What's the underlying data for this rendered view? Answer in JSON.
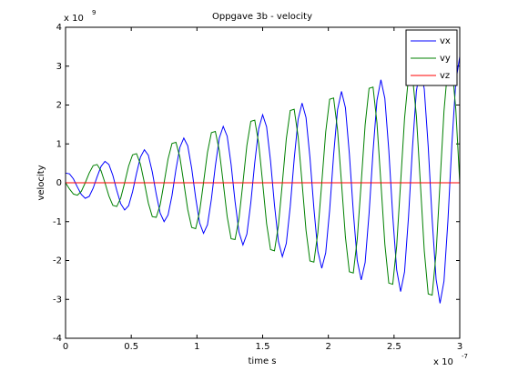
{
  "chart_data": {
    "type": "line",
    "title": "Oppgave 3b - velocity",
    "xlabel": "time s",
    "ylabel": "velocity",
    "x_exponent_base": "x 10",
    "x_exponent": "-7",
    "y_exponent_base": "x 10",
    "y_exponent": "9",
    "xlim": [
      0,
      3
    ],
    "ylim": [
      -4,
      4
    ],
    "xticks": [
      0,
      0.5,
      1,
      1.5,
      2,
      2.5,
      3
    ],
    "yticks": [
      -4,
      -3,
      -2,
      -1,
      0,
      1,
      2,
      3,
      4
    ],
    "legend_position": "upper right",
    "x": [
      0,
      0.03,
      0.06,
      0.09,
      0.12,
      0.15,
      0.18,
      0.21,
      0.24,
      0.27,
      0.3,
      0.33,
      0.36,
      0.39,
      0.42,
      0.45,
      0.48,
      0.51,
      0.54,
      0.57,
      0.6,
      0.63,
      0.66,
      0.69,
      0.72,
      0.75,
      0.78,
      0.81,
      0.84,
      0.87,
      0.9,
      0.93,
      0.96,
      0.99,
      1.02,
      1.05,
      1.08,
      1.11,
      1.14,
      1.17,
      1.2,
      1.23,
      1.26,
      1.29,
      1.32,
      1.35,
      1.38,
      1.41,
      1.44,
      1.47,
      1.5,
      1.53,
      1.56,
      1.59,
      1.62,
      1.65,
      1.68,
      1.71,
      1.74,
      1.77,
      1.8,
      1.83,
      1.86,
      1.89,
      1.92,
      1.95,
      1.98,
      2.01,
      2.04,
      2.07,
      2.1,
      2.13,
      2.16,
      2.19,
      2.22,
      2.25,
      2.28,
      2.31,
      2.34,
      2.37,
      2.4,
      2.43,
      2.46,
      2.49,
      2.52,
      2.55,
      2.58,
      2.61,
      2.64,
      2.67,
      2.7,
      2.73,
      2.76,
      2.79,
      2.82,
      2.85,
      2.88,
      2.91,
      2.94,
      2.97,
      3
    ],
    "series": [
      {
        "name": "vx",
        "color": "#0000ff",
        "values": [
          0.25,
          0.23,
          0.1,
          -0.11,
          -0.3,
          -0.4,
          -0.35,
          -0.14,
          0.15,
          0.42,
          0.55,
          0.47,
          0.19,
          -0.2,
          -0.54,
          -0.7,
          -0.59,
          -0.23,
          0.24,
          0.66,
          0.85,
          0.71,
          0.28,
          -0.29,
          -0.78,
          -1,
          -0.83,
          -0.33,
          0.34,
          0.91,
          1.15,
          0.95,
          0.37,
          -0.38,
          -1.03,
          -1.3,
          -1.08,
          -0.42,
          0.43,
          1.15,
          1.45,
          1.2,
          0.47,
          -0.48,
          -1.27,
          -1.6,
          -1.32,
          -0.51,
          0.52,
          1.39,
          1.75,
          1.44,
          0.56,
          -0.57,
          -1.51,
          -1.9,
          -1.56,
          -0.61,
          0.61,
          1.63,
          2.05,
          1.68,
          0.65,
          -0.66,
          -1.76,
          -2.2,
          -1.8,
          -0.7,
          0.71,
          1.88,
          2.35,
          1.93,
          0.74,
          -0.75,
          -2,
          -2.5,
          -2.05,
          -0.79,
          0.8,
          2.12,
          2.65,
          2.17,
          0.84,
          -0.85,
          -2.24,
          -2.8,
          -2.29,
          -0.88,
          0.89,
          2.36,
          2.95,
          2.41,
          0.93,
          -0.94,
          -2.48,
          -3.1,
          -2.53,
          -0.98,
          0.99,
          2.6,
          3.25
        ]
      },
      {
        "name": "vy",
        "color": "#008000",
        "values": [
          0,
          -0.16,
          -0.29,
          -0.32,
          -0.22,
          0,
          0.25,
          0.44,
          0.47,
          0.31,
          0,
          -0.34,
          -0.58,
          -0.61,
          -0.39,
          0,
          0.43,
          0.72,
          0.75,
          0.48,
          0,
          -0.52,
          -0.87,
          -0.89,
          -0.57,
          0,
          0.61,
          1.01,
          1.04,
          0.66,
          0,
          -0.69,
          -1.15,
          -1.18,
          -0.75,
          0,
          0.78,
          1.29,
          1.32,
          0.83,
          0,
          -0.87,
          -1.44,
          -1.46,
          -0.92,
          0,
          0.96,
          1.58,
          1.61,
          1.01,
          0,
          -1.05,
          -1.72,
          -1.75,
          -1.1,
          0,
          1.13,
          1.86,
          1.89,
          1.19,
          0,
          -1.22,
          -2.01,
          -2.04,
          -1.28,
          0,
          1.31,
          2.15,
          2.18,
          1.36,
          0,
          -1.4,
          -2.29,
          -2.32,
          -1.45,
          0,
          1.49,
          2.43,
          2.46,
          1.54,
          0,
          -1.58,
          -2.58,
          -2.61,
          -1.63,
          0,
          1.66,
          2.72,
          2.75,
          1.72,
          0,
          -1.75,
          -2.86,
          -2.89,
          -1.81,
          0,
          1.84,
          3.01,
          3.03,
          1.89,
          0
        ]
      },
      {
        "name": "vz",
        "color": "#ff0000",
        "values": [
          0,
          0,
          0,
          0,
          0,
          0,
          0,
          0,
          0,
          0,
          0,
          0,
          0,
          0,
          0,
          0,
          0,
          0,
          0,
          0,
          0,
          0,
          0,
          0,
          0,
          0,
          0,
          0,
          0,
          0,
          0,
          0,
          0,
          0,
          0,
          0,
          0,
          0,
          0,
          0,
          0,
          0,
          0,
          0,
          0,
          0,
          0,
          0,
          0,
          0,
          0,
          0,
          0,
          0,
          0,
          0,
          0,
          0,
          0,
          0,
          0,
          0,
          0,
          0,
          0,
          0,
          0,
          0,
          0,
          0,
          0,
          0,
          0,
          0,
          0,
          0,
          0,
          0,
          0,
          0,
          0,
          0,
          0,
          0,
          0,
          0,
          0,
          0,
          0,
          0,
          0,
          0,
          0,
          0,
          0,
          0,
          0,
          0,
          0,
          0,
          0
        ]
      }
    ]
  }
}
